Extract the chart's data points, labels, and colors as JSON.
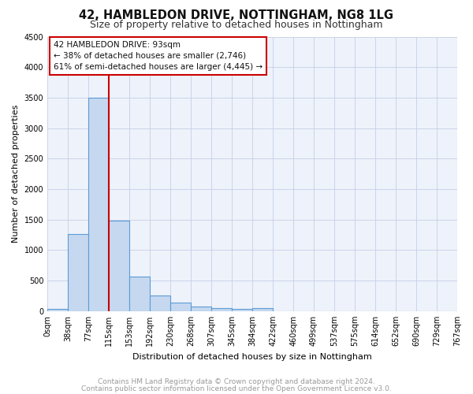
{
  "title": "42, HAMBLEDON DRIVE, NOTTINGHAM, NG8 1LG",
  "subtitle": "Size of property relative to detached houses in Nottingham",
  "xlabel": "Distribution of detached houses by size in Nottingham",
  "ylabel": "Number of detached properties",
  "bar_values": [
    40,
    1270,
    3500,
    1480,
    565,
    255,
    135,
    80,
    45,
    35,
    50,
    0,
    0,
    0,
    0,
    0,
    0,
    0,
    0,
    0
  ],
  "bar_labels": [
    "0sqm",
    "38sqm",
    "77sqm",
    "115sqm",
    "153sqm",
    "192sqm",
    "230sqm",
    "268sqm",
    "307sqm",
    "345sqm",
    "384sqm",
    "422sqm",
    "460sqm",
    "499sqm",
    "537sqm",
    "575sqm",
    "614sqm",
    "652sqm",
    "690sqm",
    "729sqm",
    "767sqm"
  ],
  "bar_color": "#c5d8f0",
  "bar_edgecolor": "#5b9bd5",
  "vline_x": 2.5,
  "vline_color": "#cc0000",
  "annotation_line1": "42 HAMBLEDON DRIVE: 93sqm",
  "annotation_line2": "← 38% of detached houses are smaller (2,746)",
  "annotation_line3": "61% of semi-detached houses are larger (4,445) →",
  "annotation_border_color": "#cc0000",
  "ylim": [
    0,
    4500
  ],
  "yticks": [
    0,
    500,
    1000,
    1500,
    2000,
    2500,
    3000,
    3500,
    4000,
    4500
  ],
  "footer_line1": "Contains HM Land Registry data © Crown copyright and database right 2024.",
  "footer_line2": "Contains public sector information licensed under the Open Government Licence v3.0.",
  "bg_color": "#eef2fa",
  "grid_color": "#c5cfe8",
  "title_fontsize": 10.5,
  "subtitle_fontsize": 9,
  "axis_label_fontsize": 8,
  "tick_fontsize": 7,
  "annotation_fontsize": 7.5,
  "footer_fontsize": 6.5
}
